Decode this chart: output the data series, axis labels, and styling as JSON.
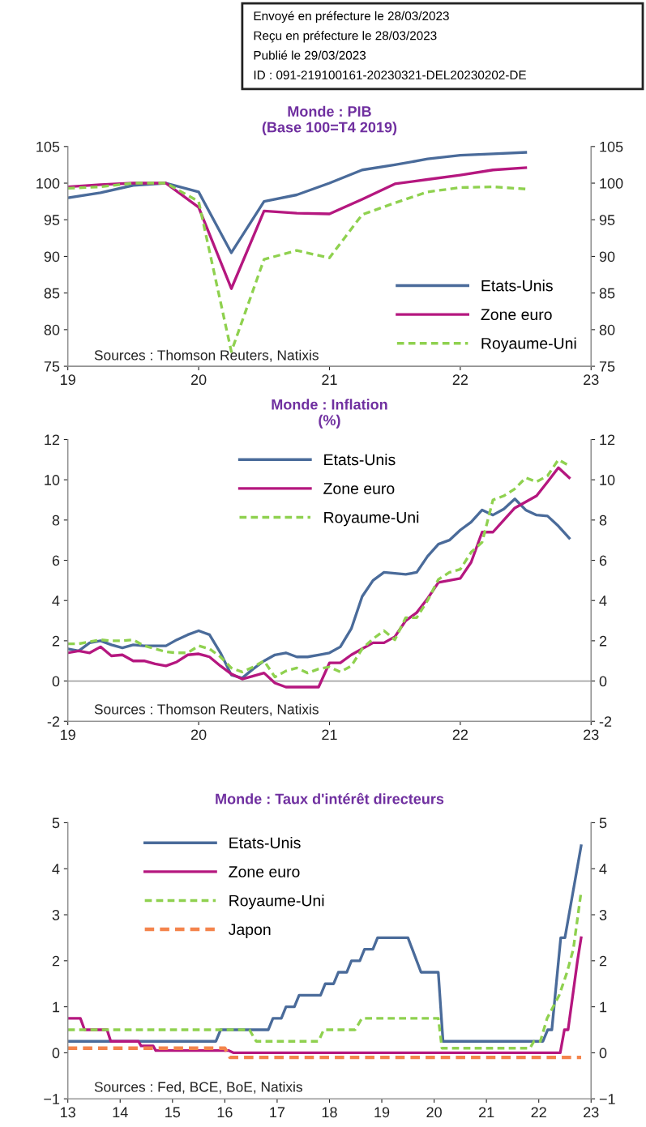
{
  "chart_data": [
    {
      "type": "other",
      "annotations": [
        "Envoyé en préfecture le 28/03/2023",
        "Reçu en préfecture le 28/03/2023",
        "Publié le 29/03/2023",
        "ID : 091-219100161-20230321-DEL20230202-DE"
      ]
    },
    {
      "type": "line",
      "title": "Monde : PIB",
      "subtitle": "(Base 100=T4 2019)",
      "annotations": [
        "Sources : Thomson Reuters, Natixis"
      ],
      "x": [
        19,
        19.25,
        19.5,
        19.75,
        20,
        20.25,
        20.5,
        20.75,
        21,
        21.25,
        21.5,
        21.75,
        22,
        22.25,
        22.5
      ],
      "series": [
        {
          "name": "Etats-Unis",
          "color": "#4a6b9a",
          "line_style": "solid",
          "values": [
            98.0,
            98.7,
            99.7,
            100,
            98.8,
            90.5,
            97.5,
            98.4,
            100,
            101.8,
            102.5,
            103.3,
            103.8,
            104.0,
            104.2
          ]
        },
        {
          "name": "Zone euro",
          "color": "#b5177f",
          "line_style": "solid",
          "values": [
            99.5,
            99.8,
            100,
            100,
            96.7,
            85.6,
            96.2,
            95.9,
            95.8,
            97.8,
            99.9,
            100.5,
            101.1,
            101.8,
            102.1
          ]
        },
        {
          "name": "Royaume-Uni",
          "color": "#8fd14f",
          "line_style": "dashed",
          "values": [
            99.3,
            99.5,
            100,
            100,
            97.5,
            77,
            89.6,
            90.8,
            89.8,
            95.7,
            97.3,
            98.8,
            99.4,
            99.5,
            99.2
          ]
        }
      ],
      "xlim": [
        19,
        23
      ],
      "xticks": [
        19,
        20,
        21,
        22,
        23
      ],
      "ylim": [
        75,
        105
      ],
      "yticks": [
        75,
        80,
        85,
        90,
        95,
        100,
        105
      ],
      "y2lim": [
        75,
        105
      ],
      "y2ticks": [
        75,
        80,
        85,
        90,
        95,
        100,
        105
      ],
      "legend": "lower right",
      "grid": false
    },
    {
      "type": "line",
      "title": "Monde : Inflation",
      "subtitle": "(%)",
      "annotations": [
        "Sources : Thomson Reuters, Natixis"
      ],
      "x": [
        19,
        19.083,
        19.167,
        19.25,
        19.333,
        19.417,
        19.5,
        19.583,
        19.667,
        19.75,
        19.833,
        19.917,
        20,
        20.083,
        20.167,
        20.25,
        20.333,
        20.417,
        20.5,
        20.583,
        20.667,
        20.75,
        20.833,
        20.917,
        21,
        21.083,
        21.167,
        21.25,
        21.333,
        21.417,
        21.5,
        21.583,
        21.667,
        21.75,
        21.833,
        21.917,
        22,
        22.083,
        22.167,
        22.25,
        22.333,
        22.417,
        22.5,
        22.583,
        22.667,
        22.75,
        22.833
      ],
      "series": [
        {
          "name": "Etats-Unis",
          "color": "#4a6b9a",
          "line_style": "solid",
          "values": [
            1.6,
            1.5,
            1.9,
            2.0,
            1.8,
            1.65,
            1.8,
            1.75,
            1.75,
            1.75,
            2.05,
            2.3,
            2.5,
            2.3,
            1.4,
            0.3,
            0.15,
            0.6,
            1.0,
            1.3,
            1.4,
            1.2,
            1.2,
            1.3,
            1.4,
            1.7,
            2.6,
            4.2,
            5.0,
            5.4,
            5.35,
            5.3,
            5.4,
            6.2,
            6.8,
            7.0,
            7.5,
            7.9,
            8.5,
            8.25,
            8.55,
            9.05,
            8.5,
            8.25,
            8.2,
            7.7,
            7.1
          ]
        },
        {
          "name": "Zone euro",
          "color": "#b5177f",
          "line_style": "solid",
          "values": [
            1.4,
            1.5,
            1.4,
            1.7,
            1.25,
            1.3,
            1.0,
            1.0,
            0.85,
            0.75,
            0.95,
            1.3,
            1.35,
            1.2,
            0.75,
            0.35,
            0.1,
            0.25,
            0.4,
            -0.1,
            -0.3,
            -0.3,
            -0.3,
            -0.3,
            0.9,
            0.9,
            1.3,
            1.6,
            1.9,
            1.9,
            2.2,
            3.0,
            3.4,
            4.1,
            4.9,
            5.0,
            5.1,
            5.9,
            7.4,
            7.4,
            8.0,
            8.6,
            8.9,
            9.2,
            9.9,
            10.6,
            10.1
          ]
        },
        {
          "name": "Royaume-Uni",
          "color": "#8fd14f",
          "line_style": "dashed",
          "values": [
            1.85,
            1.85,
            1.95,
            2.05,
            2.0,
            2.0,
            2.05,
            1.75,
            1.6,
            1.45,
            1.4,
            1.4,
            1.75,
            1.6,
            1.2,
            0.65,
            0.45,
            0.7,
            1.0,
            0.2,
            0.5,
            0.65,
            0.4,
            0.6,
            0.7,
            0.45,
            0.75,
            1.6,
            2.1,
            2.5,
            2.05,
            3.15,
            3.15,
            4.0,
            5.05,
            5.4,
            5.55,
            6.4,
            6.9,
            9.0,
            9.2,
            9.55,
            10.1,
            9.9,
            10.2,
            11.0,
            10.7
          ]
        }
      ],
      "xlim": [
        19,
        23
      ],
      "xticks": [
        19,
        20,
        21,
        22,
        23
      ],
      "ylim": [
        -2,
        12
      ],
      "yticks": [
        -2,
        0,
        2,
        4,
        6,
        8,
        10,
        12
      ],
      "y2lim": [
        -2,
        12
      ],
      "y2ticks": [
        -2,
        0,
        2,
        4,
        6,
        8,
        10,
        12
      ],
      "ref_lines": [
        {
          "axis": "y",
          "value": 0,
          "color": "#a6a6a6"
        }
      ],
      "legend": "top",
      "grid": false
    },
    {
      "type": "line",
      "title": "Monde : Taux d'intérêt directeurs",
      "annotations": [
        "Sources : Fed, BCE, BoE, Natixis"
      ],
      "series": [
        {
          "name": "Etats-Unis",
          "color": "#4a6b9a",
          "line_style": "solid",
          "x": [
            13,
            15.83,
            15.92,
            16.83,
            16.92,
            17.08,
            17.17,
            17.33,
            17.42,
            17.83,
            17.92,
            18.08,
            18.17,
            18.33,
            18.42,
            18.58,
            18.67,
            18.83,
            18.92,
            19.5,
            19.75,
            20.08,
            20.17,
            22.08,
            22.17,
            22.25,
            22.42,
            22.5,
            22.81
          ],
          "values": [
            0.25,
            0.25,
            0.5,
            0.5,
            0.75,
            0.75,
            1.0,
            1.0,
            1.25,
            1.25,
            1.5,
            1.5,
            1.75,
            1.75,
            2.0,
            2.0,
            2.25,
            2.25,
            2.5,
            2.5,
            1.75,
            1.75,
            0.25,
            0.25,
            0.5,
            0.5,
            2.5,
            2.5,
            4.5
          ]
        },
        {
          "name": "Zone euro",
          "color": "#b5177f",
          "line_style": "solid",
          "x": [
            13,
            13.24,
            13.32,
            13.75,
            13.82,
            14.35,
            14.4,
            14.63,
            14.68,
            16.07,
            16.17,
            22.41,
            22.49,
            22.56,
            22.74,
            22.81
          ],
          "values": [
            0.75,
            0.75,
            0.5,
            0.5,
            0.25,
            0.25,
            0.15,
            0.15,
            0.05,
            0.05,
            0,
            0,
            0.5,
            0.5,
            2.0,
            2.5
          ]
        },
        {
          "name": "Royaume-Uni",
          "color": "#8fd14f",
          "line_style": "dashed",
          "x": [
            13,
            16.47,
            16.6,
            17.79,
            17.89,
            18.49,
            18.62,
            20.08,
            20.15,
            21.83,
            21.91,
            22.03,
            22.16,
            22.39,
            22.54,
            22.66,
            22.81
          ],
          "values": [
            0.5,
            0.5,
            0.25,
            0.25,
            0.5,
            0.5,
            0.75,
            0.75,
            0.1,
            0.1,
            0.25,
            0.25,
            0.75,
            1.25,
            1.75,
            2.25,
            3.5
          ]
        },
        {
          "name": "Japon",
          "color": "#f4844c",
          "line_style": "dashed",
          "x": [
            13,
            16.0,
            16.1,
            22.81
          ],
          "values": [
            0.1,
            0.1,
            -0.1,
            -0.1
          ]
        }
      ],
      "xlim": [
        13,
        23
      ],
      "xticks": [
        13,
        14,
        15,
        16,
        17,
        18,
        19,
        20,
        21,
        22,
        23
      ],
      "ylim": [
        -1,
        5
      ],
      "yticks": [
        {
          "value": -1,
          "label": "−1"
        },
        0,
        1,
        2,
        3,
        4,
        5
      ],
      "y2lim": [
        -1,
        5
      ],
      "y2ticks": [
        {
          "value": -1,
          "label": "−1"
        },
        0,
        1,
        2,
        3,
        4,
        5
      ],
      "legend": "top left",
      "grid": false
    }
  ]
}
